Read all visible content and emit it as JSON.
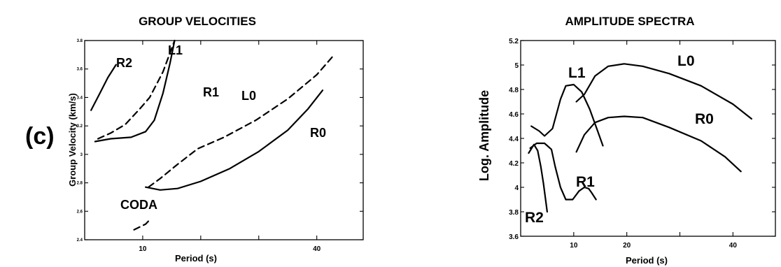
{
  "panel_letter": "(c)",
  "chart_data": [
    {
      "type": "line",
      "title": "GROUP VELOCITIES",
      "xlabel": "Period (s)",
      "ylabel": "Group Velocity (km/s)",
      "xlim": [
        0,
        48
      ],
      "ylim": [
        2.4,
        3.8
      ],
      "xticks": [
        10,
        20,
        30,
        40
      ],
      "xtick_labels": [
        "10",
        "",
        "",
        "40"
      ],
      "yticks": [
        2.4,
        2.6,
        2.8,
        3.0,
        3.2,
        3.4,
        3.6,
        3.8
      ],
      "ytick_labels": [
        "2.4",
        "2.6",
        "2.8",
        "3",
        "3.2",
        "3.4",
        "3.6",
        "3.8"
      ],
      "grid": false,
      "series": [
        {
          "name": "R2",
          "style": "solid",
          "x": [
            1.1,
            2.5,
            4.0,
            5.4
          ],
          "y": [
            3.31,
            3.42,
            3.54,
            3.63
          ]
        },
        {
          "name": "L1",
          "style": "dashed",
          "x": [
            2.3,
            4.5,
            7.0,
            9.5,
            11.2,
            13.5,
            15.5
          ],
          "y": [
            3.11,
            3.15,
            3.21,
            3.32,
            3.4,
            3.58,
            3.8
          ]
        },
        {
          "name": "R1",
          "style": "solid",
          "x": [
            1.8,
            4.5,
            8.0,
            10.5,
            12.0,
            13.5,
            14.7,
            15.5
          ],
          "y": [
            3.09,
            3.11,
            3.12,
            3.16,
            3.24,
            3.43,
            3.64,
            3.8
          ]
        },
        {
          "name": "L0",
          "style": "dashed",
          "x": [
            11.0,
            13.0,
            16.0,
            19.5,
            24.0,
            29.5,
            35.0,
            40.0,
            43.0
          ],
          "y": [
            2.77,
            2.83,
            2.93,
            3.04,
            3.12,
            3.24,
            3.39,
            3.56,
            3.7
          ]
        },
        {
          "name": "R0",
          "style": "solid",
          "x": [
            10.5,
            13.0,
            16.0,
            20.0,
            25.0,
            30.0,
            35.0,
            38.5,
            41.0
          ],
          "y": [
            2.77,
            2.75,
            2.76,
            2.81,
            2.9,
            3.02,
            3.17,
            3.32,
            3.45
          ]
        },
        {
          "name": "CODA",
          "style": "dashed",
          "x": [
            8.5,
            9.5,
            10.5,
            11.2
          ],
          "y": [
            2.47,
            2.49,
            2.51,
            2.54
          ]
        }
      ],
      "labels": [
        "R2",
        "L1",
        "R1",
        "L0",
        "R0",
        "CODA"
      ]
    },
    {
      "type": "line",
      "title": "AMPLITUDE SPECTRA",
      "xlabel": "Period (s)",
      "ylabel": "Log. Amplitude",
      "xlim": [
        0,
        48
      ],
      "ylim": [
        3.6,
        5.2
      ],
      "xticks": [
        10,
        20,
        30,
        40
      ],
      "xtick_labels": [
        "10",
        "20",
        "",
        "40"
      ],
      "yticks": [
        3.6,
        3.8,
        4.0,
        4.2,
        4.4,
        4.6,
        4.8,
        5.0,
        5.2
      ],
      "ytick_labels": [
        "3.6",
        "3.8",
        "4",
        "4.2",
        "4.4",
        "4.6",
        "4.8",
        "5",
        "5.2"
      ],
      "grid": false,
      "series": [
        {
          "name": "L1",
          "style": "solid",
          "x": [
            2.0,
            3.5,
            4.5,
            6.0,
            7.5,
            8.5,
            10.0,
            11.5,
            13.0,
            14.5,
            15.5
          ],
          "y": [
            4.5,
            4.46,
            4.42,
            4.48,
            4.72,
            4.83,
            4.84,
            4.78,
            4.64,
            4.46,
            4.34
          ]
        },
        {
          "name": "L0",
          "style": "solid",
          "x": [
            10.5,
            12.0,
            14.0,
            16.5,
            19.5,
            23.0,
            28.0,
            34.0,
            40.0,
            43.5
          ],
          "y": [
            4.7,
            4.76,
            4.91,
            4.99,
            5.01,
            4.99,
            4.93,
            4.83,
            4.68,
            4.56
          ]
        },
        {
          "name": "R0",
          "style": "solid",
          "x": [
            10.5,
            12.0,
            14.0,
            16.5,
            19.5,
            23.0,
            28.0,
            34.0,
            38.5,
            41.5
          ],
          "y": [
            4.29,
            4.43,
            4.53,
            4.57,
            4.58,
            4.57,
            4.49,
            4.38,
            4.25,
            4.13
          ]
        },
        {
          "name": "R1",
          "style": "solid",
          "x": [
            1.8,
            3.0,
            4.5,
            5.8,
            6.5,
            7.5,
            8.5,
            9.8,
            11.0,
            12.0,
            12.8,
            13.3,
            14.2
          ],
          "y": [
            4.32,
            4.36,
            4.36,
            4.31,
            4.17,
            4.0,
            3.9,
            3.9,
            3.97,
            4.0,
            3.99,
            3.96,
            3.9
          ]
        },
        {
          "name": "R2",
          "style": "solid",
          "x": [
            1.5,
            2.5,
            3.2,
            3.8,
            4.3,
            4.7,
            5.0
          ],
          "y": [
            4.28,
            4.35,
            4.3,
            4.17,
            4.03,
            3.9,
            3.8
          ]
        }
      ],
      "labels": [
        "L1",
        "L0",
        "R0",
        "R1",
        "R2"
      ]
    }
  ]
}
